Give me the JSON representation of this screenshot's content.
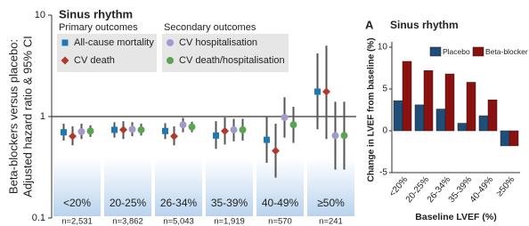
{
  "chart_data": [
    {
      "type": "forest",
      "title": "Sinus rhythm",
      "ylabel": [
        "Beta-blockers versus placebo:",
        "Adjusted hazard ratio & 95% CI"
      ],
      "yscale": "log",
      "ylim": [
        0.1,
        10
      ],
      "yticks": [
        0.1,
        1,
        10
      ],
      "reference_line": 1,
      "legend_groups": [
        {
          "title": "Primary outcomes",
          "series": [
            0,
            1
          ]
        },
        {
          "title": "Secondary outcomes",
          "series": [
            2,
            3
          ]
        }
      ],
      "categories": [
        "<20%",
        "20-25%",
        "26-34%",
        "35-39%",
        "40-49%",
        "≥50%"
      ],
      "counts": [
        "n=2,531",
        "n=3,862",
        "n=5,043",
        "n=1,919",
        "n=570",
        "n=241"
      ],
      "series": [
        {
          "name": "All-cause mortality",
          "color": "#1f77b4",
          "marker": "square",
          "values": [
            0.7,
            0.74,
            0.72,
            0.65,
            0.59,
            1.76
          ],
          "lower": [
            0.58,
            0.62,
            0.6,
            0.48,
            0.35,
            0.75
          ],
          "upper": [
            0.85,
            0.88,
            0.86,
            0.9,
            1.0,
            4.2
          ]
        },
        {
          "name": "CV death",
          "color": "#b03a2e",
          "marker": "diamond",
          "values": [
            0.64,
            0.74,
            0.64,
            0.72,
            0.46,
            1.76
          ],
          "lower": [
            0.52,
            0.6,
            0.52,
            0.53,
            0.25,
            0.6
          ],
          "upper": [
            0.8,
            0.9,
            0.8,
            0.98,
            0.85,
            5.0
          ]
        },
        {
          "name": "CV hospitalisation",
          "color": "#a29bc9",
          "marker": "circle",
          "values": [
            0.71,
            0.75,
            0.83,
            0.74,
            0.98,
            0.65
          ],
          "lower": [
            0.6,
            0.64,
            0.7,
            0.57,
            0.62,
            0.3
          ],
          "upper": [
            0.85,
            0.88,
            0.97,
            0.95,
            1.55,
            1.4
          ]
        },
        {
          "name": "CV death/hospitalisation",
          "color": "#5aa454",
          "marker": "circle",
          "values": [
            0.72,
            0.74,
            0.79,
            0.74,
            0.83,
            0.65
          ],
          "lower": [
            0.63,
            0.65,
            0.7,
            0.58,
            0.55,
            0.3
          ],
          "upper": [
            0.82,
            0.85,
            0.89,
            0.95,
            1.25,
            1.4
          ]
        }
      ]
    },
    {
      "type": "bar",
      "panel": "A",
      "title": "Sinus rhythm",
      "xlabel": "Baseline LVEF (%)",
      "ylabel": "Change in LVEF from baseline (%)",
      "ylim": [
        -5,
        10
      ],
      "yticks": [
        -5,
        0,
        5,
        10
      ],
      "categories": [
        "<20%",
        "20-25%",
        "26-34%",
        "35-39%",
        "40-49%",
        "≥50%"
      ],
      "series": [
        {
          "name": "Placebo",
          "color": "#1f4e79",
          "values": [
            3.6,
            3.1,
            2.6,
            0.9,
            1.8,
            -1.8
          ]
        },
        {
          "name": "Beta-blocker",
          "color": "#8b1010",
          "values": [
            8.3,
            7.2,
            6.8,
            5.8,
            3.7,
            -1.8
          ]
        }
      ]
    }
  ]
}
